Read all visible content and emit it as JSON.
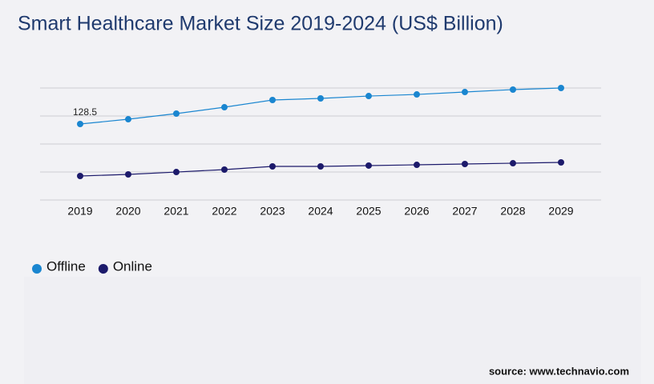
{
  "chart_data": {
    "type": "line",
    "title": "Smart Healthcare Market Size 2019-2024 (US$ Billion)",
    "categories": [
      "2019",
      "2020",
      "2021",
      "2022",
      "2023",
      "2024",
      "2025",
      "2026",
      "2027",
      "2028",
      "2029"
    ],
    "series": [
      {
        "name": "Offline",
        "color": "#1a86d0",
        "values": [
          128.5,
          136.6,
          146.1,
          156.9,
          169.1,
          171.8,
          175.8,
          178.5,
          182.6,
          186.7,
          189.4
        ]
      },
      {
        "name": "Online",
        "color": "#1c1a6b",
        "values": [
          40.6,
          43.3,
          47.3,
          51.4,
          56.8,
          56.8,
          58.2,
          59.5,
          60.9,
          62.2,
          63.6
        ]
      }
    ],
    "ylim": [
      0,
      189.4
    ],
    "source": "source: www.technavio.com"
  }
}
